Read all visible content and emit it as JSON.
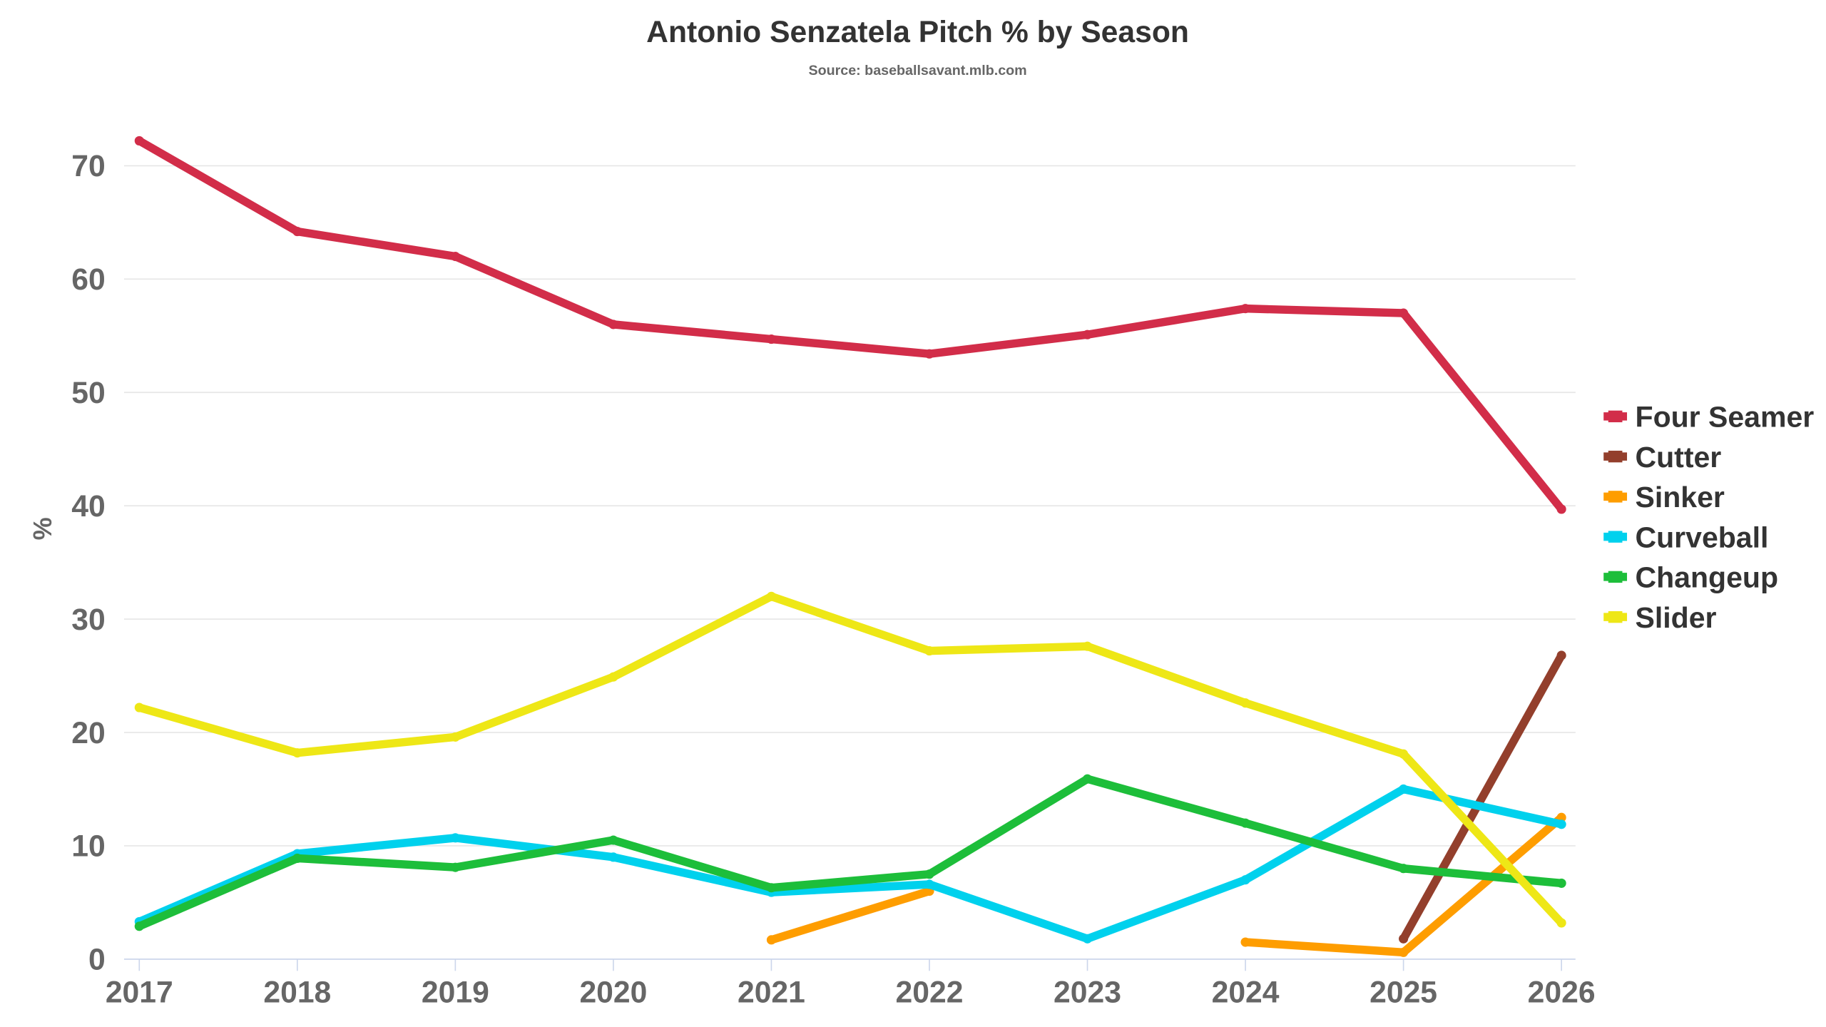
{
  "chart_data": {
    "type": "line",
    "title": "Antonio Senzatela Pitch % by Season",
    "subtitle": "Source: baseballsavant.mlb.com",
    "xlabel": "",
    "ylabel": "%",
    "x": [
      "2017",
      "2018",
      "2019",
      "2020",
      "2021",
      "2022",
      "2023",
      "2024",
      "2025",
      "2026"
    ],
    "yticks": [
      "0",
      "10",
      "20",
      "30",
      "40",
      "50",
      "60",
      "70"
    ],
    "ylim": [
      0,
      75
    ],
    "grid": true,
    "legend_position": "right",
    "series": [
      {
        "name": "Four Seamer",
        "color": "#d22d49",
        "values": [
          72.2,
          64.2,
          62.0,
          56.0,
          54.7,
          53.4,
          55.1,
          57.4,
          57.0,
          39.7
        ]
      },
      {
        "name": "Cutter",
        "color": "#933f2c",
        "values": [
          null,
          null,
          null,
          null,
          null,
          null,
          null,
          null,
          1.8,
          26.8
        ]
      },
      {
        "name": "Sinker",
        "color": "#fe9d00",
        "values": [
          null,
          null,
          null,
          null,
          1.7,
          6.0,
          null,
          1.5,
          0.6,
          12.5
        ]
      },
      {
        "name": "Curveball",
        "color": "#00d1ed",
        "values": [
          3.3,
          9.3,
          10.7,
          9.0,
          5.9,
          6.6,
          1.8,
          7.0,
          15.0,
          11.9
        ]
      },
      {
        "name": "Changeup",
        "color": "#1dbe3a",
        "values": [
          2.9,
          8.9,
          8.1,
          10.5,
          6.3,
          7.5,
          15.9,
          12.0,
          8.0,
          6.7
        ]
      },
      {
        "name": "Slider",
        "color": "#eee716",
        "values": [
          22.2,
          18.2,
          19.6,
          24.9,
          32.0,
          27.2,
          27.6,
          22.6,
          18.1,
          3.2
        ]
      }
    ]
  }
}
